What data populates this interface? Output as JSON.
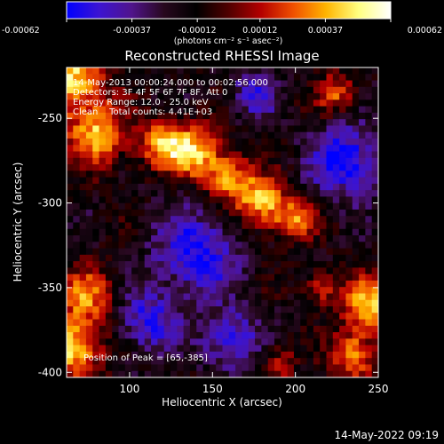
{
  "chart_data": {
    "type": "heatmap",
    "title": "Reconstructed RHESSI Image",
    "xlabel": "Heliocentric X (arcsec)",
    "ylabel": "Heliocentric Y (arcsec)",
    "xlim": [
      62,
      250
    ],
    "ylim": [
      -403,
      -220
    ],
    "xticks": [
      100,
      150,
      200,
      250
    ],
    "yticks": [
      -250,
      -300,
      -350,
      -400
    ],
    "colorbar": {
      "min": -0.00062,
      "max": 0.00062,
      "ticks": [
        "-0.00062",
        "-0.00037",
        "-0.00012",
        "0.00012",
        "0.00037",
        "0.00062"
      ],
      "unit_label": "(photons cm⁻² s⁻¹ asec⁻²)",
      "colormap": [
        "#0000ff",
        "#3c14d2",
        "#50148c",
        "#28081e",
        "#000000",
        "#500000",
        "#b40000",
        "#f05000",
        "#ffb400",
        "#ffff80",
        "#ffffff"
      ]
    },
    "info_lines": [
      "14-May-2013 00:00:24.000 to 00:02:56.000",
      "Detectors: 3F 4F 5F 6F 7F 8F, Att 0",
      "Energy Range: 12.0 - 25.0 keV",
      "Clean    Total counts: 4.41E+03"
    ],
    "peak_label": "Position of Peak = [65,-385]",
    "peak_position": [
      65,
      -385
    ],
    "emission_regions": [
      {
        "x": 62,
        "y": -225,
        "amp": 1.0,
        "size": 22
      },
      {
        "x": 80,
        "y": -260,
        "amp": 0.85,
        "size": 18
      },
      {
        "x": 65,
        "y": -385,
        "amp": 1.0,
        "size": 18
      },
      {
        "x": 75,
        "y": -355,
        "amp": 0.7,
        "size": 16
      },
      {
        "x": 120,
        "y": -265,
        "amp": 0.85,
        "size": 14
      },
      {
        "x": 140,
        "y": -270,
        "amp": 0.9,
        "size": 15
      },
      {
        "x": 160,
        "y": -285,
        "amp": 0.8,
        "size": 14
      },
      {
        "x": 180,
        "y": -300,
        "amp": 0.9,
        "size": 15
      },
      {
        "x": 200,
        "y": -310,
        "amp": 0.7,
        "size": 12
      },
      {
        "x": 245,
        "y": -360,
        "amp": 0.9,
        "size": 16
      },
      {
        "x": 235,
        "y": -390,
        "amp": 0.8,
        "size": 14
      },
      {
        "x": 225,
        "y": -235,
        "amp": 0.6,
        "size": 12
      },
      {
        "x": 215,
        "y": -350,
        "amp": 0.55,
        "size": 10
      },
      {
        "x": 190,
        "y": -395,
        "amp": 0.5,
        "size": 10
      }
    ],
    "negative_regions": [
      {
        "x": 140,
        "y": -330,
        "amp": -0.7,
        "size": 25
      },
      {
        "x": 230,
        "y": -275,
        "amp": -0.8,
        "size": 20
      },
      {
        "x": 110,
        "y": -370,
        "amp": -0.6,
        "size": 18
      },
      {
        "x": 175,
        "y": -235,
        "amp": -0.5,
        "size": 15
      },
      {
        "x": 160,
        "y": -380,
        "amp": -0.6,
        "size": 18
      }
    ]
  },
  "footer": {
    "timestamp": "14-May-2022 09:19"
  }
}
